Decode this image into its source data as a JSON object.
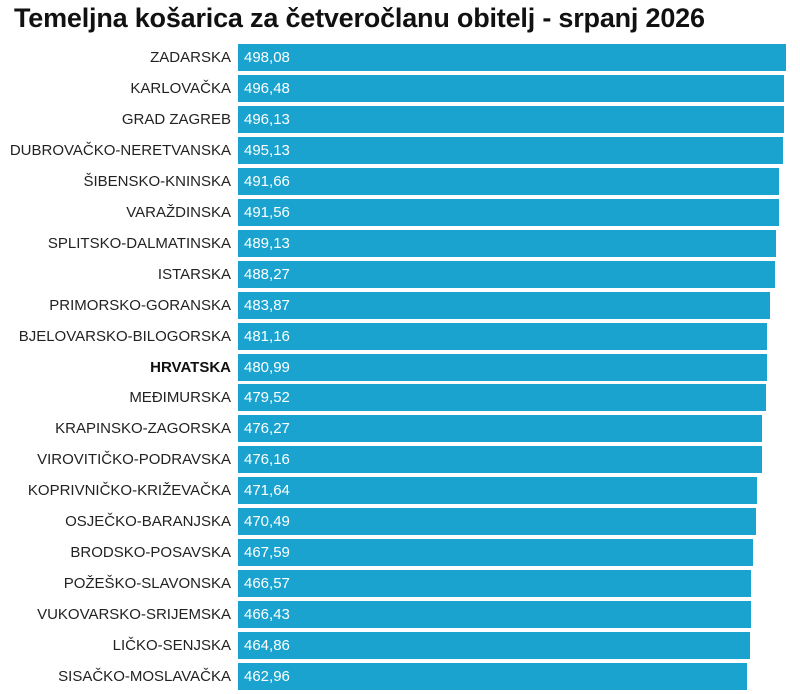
{
  "title": "Temeljna košarica za četveročlanu obitelj - srpanj 2026",
  "colors": {
    "bar": "#1aa3cf",
    "label": "#222222",
    "value_text": "#ffffff"
  },
  "chart_data": {
    "type": "bar",
    "orientation": "horizontal",
    "title": "Temeljna košarica za četveročlanu obitelj - srpanj 2026",
    "xlabel": "",
    "ylabel": "",
    "grid": false,
    "categories": [
      "ZADARSKA",
      "KARLOVAČKA",
      "GRAD ZAGREB",
      "DUBROVAČKO-NERETVANSKA",
      "ŠIBENSKO-KNINSKA",
      "VARAŽDINSKA",
      "SPLITSKO-DALMATINSKA",
      "ISTARSKA",
      "PRIMORSKO-GORANSKA",
      "BJELOVARSKO-BILOGORSKA",
      "HRVATSKA",
      "MEĐIMURSKA",
      "KRAPINSKO-ZAGORSKA",
      "VIROVITIČKO-PODRAVSKA",
      "KOPRIVNIČKO-KRIŽEVAČKA",
      "OSJEČKO-BARANJSKA",
      "BRODSKO-POSAVSKA",
      "POŽEŠKO-SLAVONSKA",
      "VUKOVARSKO-SRIJEMSKA",
      "LIČKO-SENJSKA",
      "SISAČKO-MOSLAVAČKA"
    ],
    "values": [
      498.08,
      496.48,
      496.13,
      495.13,
      491.66,
      491.56,
      489.13,
      488.27,
      483.87,
      481.16,
      480.99,
      479.52,
      476.27,
      476.16,
      471.64,
      470.49,
      467.59,
      466.57,
      466.43,
      464.86,
      462.96
    ],
    "value_labels": [
      "498,08",
      "496,48",
      "496,13",
      "495,13",
      "491,66",
      "491,56",
      "489,13",
      "488,27",
      "483,87",
      "481,16",
      "480,99",
      "479,52",
      "476,27",
      "476,16",
      "471,64",
      "470,49",
      "467,59",
      "466,57",
      "466,43",
      "464,86",
      "462,96"
    ],
    "highlighted": [
      "HRVATSKA"
    ],
    "xlim": [
      0,
      498.08
    ]
  }
}
